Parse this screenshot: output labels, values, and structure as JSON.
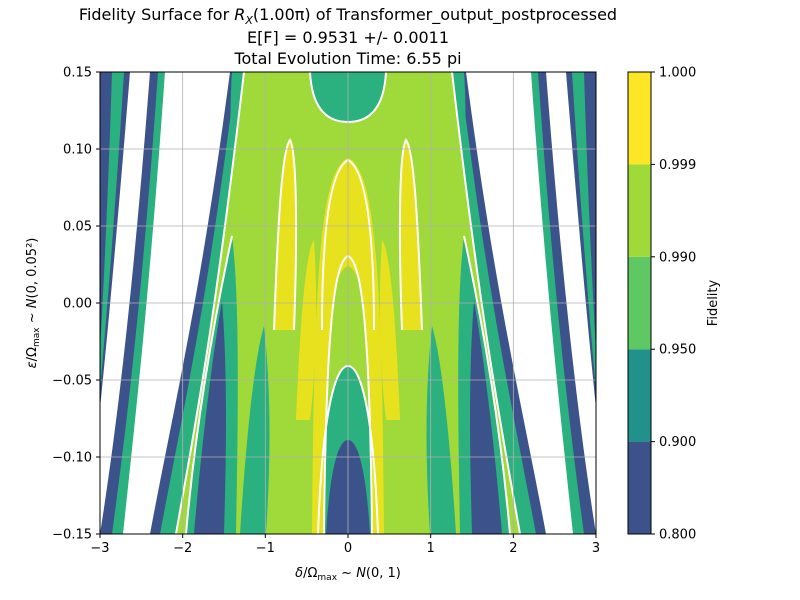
{
  "chart_data": {
    "type": "heatmap",
    "title_lines": [
      "Fidelity Surface for R_X(1.00π) of Transformer_output_postprocessed",
      "E[F] = 0.9531 +/- 0.0011",
      "Total Evolution Time: 6.55 pi"
    ],
    "title_main": {
      "prefix": "Fidelity Surface for ",
      "op": "R",
      "op_sub": "X",
      "arg": "(1.00π)",
      "suffix": " of Transformer_output_postprocessed"
    },
    "xlabel": "δ/Ωmax ~ N(0, 1)",
    "ylabel": "ε/Ωmax ~ N(0, 0.05²)",
    "xlim": [
      -3,
      3
    ],
    "ylim": [
      -0.15,
      0.15
    ],
    "xticks": [
      -3,
      -2,
      -1,
      0,
      1,
      2,
      3
    ],
    "xtick_labels": [
      "−3",
      "−2",
      "−1",
      "0",
      "1",
      "2",
      "3"
    ],
    "yticks": [
      -0.15,
      -0.1,
      -0.05,
      0.0,
      0.05,
      0.1,
      0.15
    ],
    "ytick_labels": [
      "−0.15",
      "−0.10",
      "−0.05",
      "0.00",
      "0.05",
      "0.10",
      "0.15"
    ],
    "grid": true,
    "colorbar": {
      "label": "Fidelity",
      "levels": [
        0.8,
        0.9,
        0.95,
        0.99,
        0.999,
        1.0
      ],
      "tick_labels": [
        "0.800",
        "0.900",
        "0.950",
        "0.990",
        "0.999",
        "1.000"
      ],
      "colors": [
        "#3b528b",
        "#21918c",
        "#5ec962",
        "#a0da39",
        "#fde725"
      ]
    },
    "band_colors": [
      "#3b528b",
      "#2bb07f",
      "#9fd93a",
      "#e8e21e"
    ],
    "contour_line_color": "#ffffff"
  }
}
